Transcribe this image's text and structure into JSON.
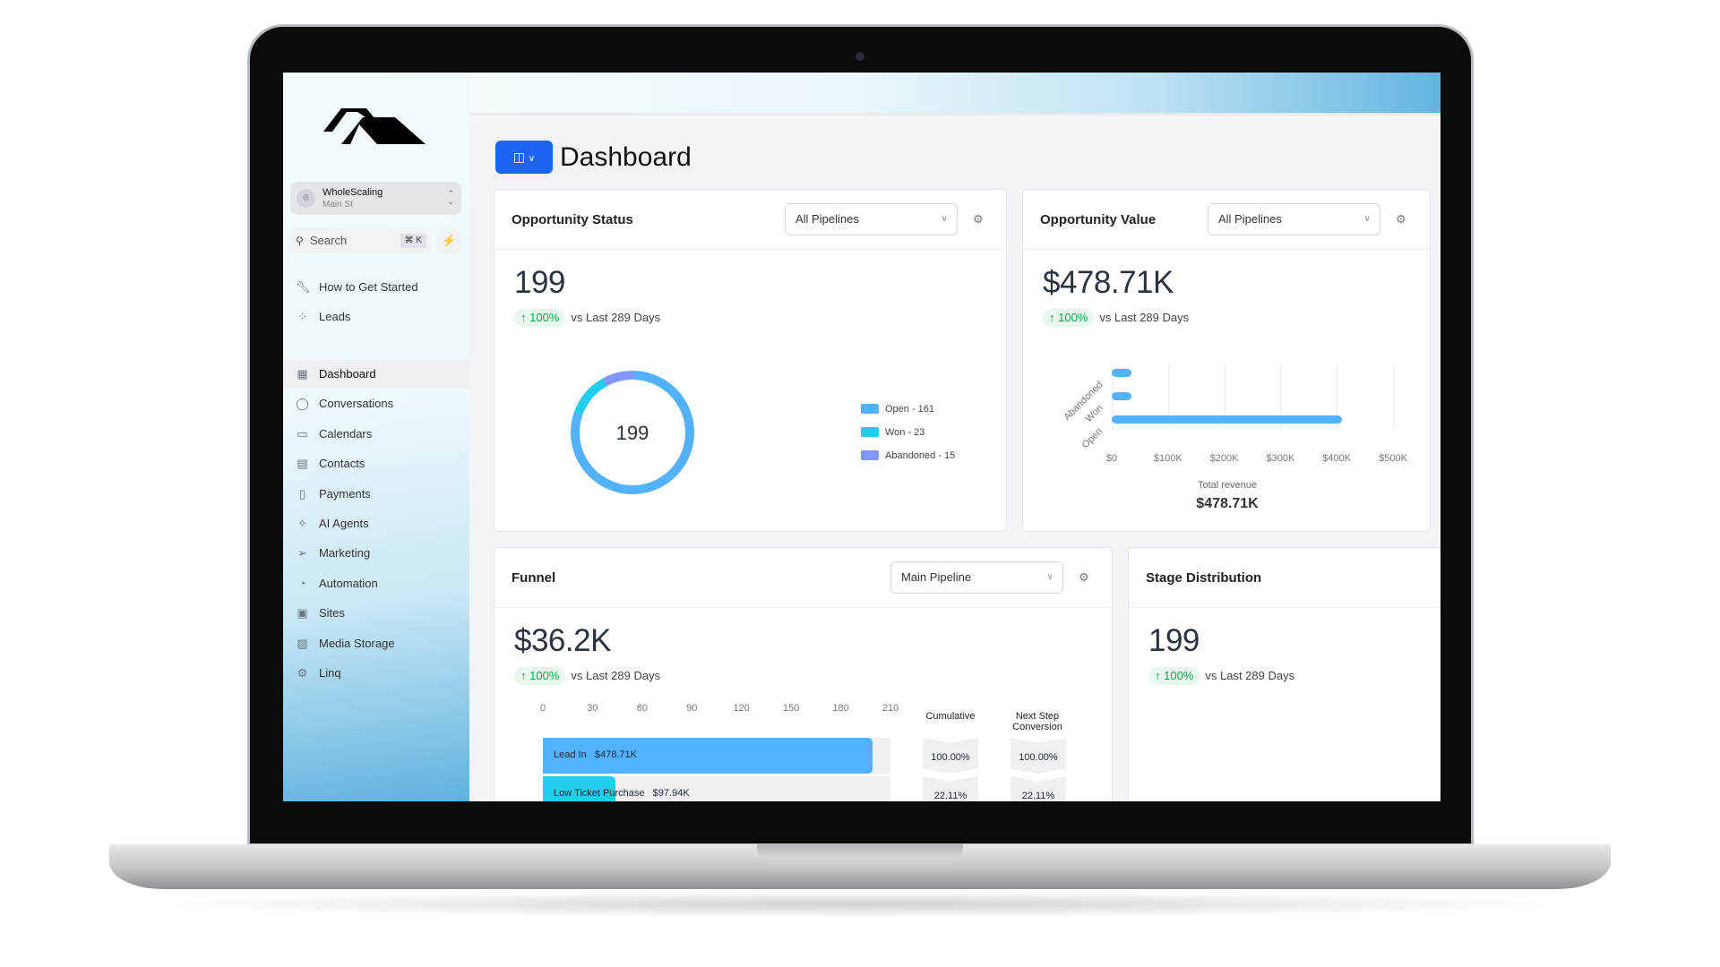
{
  "sidebar": {
    "account": {
      "name": "WholeScaling",
      "location": "Main St"
    },
    "search": {
      "placeholder": "Search",
      "shortcut": "⌘ K"
    },
    "top_items": [
      {
        "label": "How to Get Started",
        "icon": "wrench-icon"
      },
      {
        "label": "Leads",
        "icon": "leads-icon"
      }
    ],
    "items": [
      {
        "label": "Dashboard",
        "icon": "dashboard-icon",
        "active": true
      },
      {
        "label": "Conversations",
        "icon": "chat-icon"
      },
      {
        "label": "Calendars",
        "icon": "calendar-icon"
      },
      {
        "label": "Contacts",
        "icon": "contacts-icon"
      },
      {
        "label": "Payments",
        "icon": "payments-icon"
      },
      {
        "label": "AI Agents",
        "icon": "sparkle-icon"
      },
      {
        "label": "Marketing",
        "icon": "send-icon"
      },
      {
        "label": "Automation",
        "icon": "automation-icon"
      },
      {
        "label": "Sites",
        "icon": "sites-icon"
      },
      {
        "label": "Media Storage",
        "icon": "image-icon"
      },
      {
        "label": "Linq",
        "icon": "gears-icon"
      }
    ]
  },
  "header": {
    "title": "Dashboard"
  },
  "cards": {
    "status": {
      "title": "Opportunity Status",
      "select": "All Pipelines",
      "value": "199",
      "delta": "↑ 100%",
      "compare": "vs Last 289 Days"
    },
    "value": {
      "title": "Opportunity Value",
      "select": "All Pipelines",
      "value": "$478.71K",
      "delta": "↑ 100%",
      "compare": "vs Last 289 Days",
      "total_label": "Total revenue",
      "total_value": "$478.71K"
    },
    "funnel": {
      "title": "Funnel",
      "select": "Main Pipeline",
      "value": "$36.2K",
      "delta": "↑ 100%",
      "compare": "vs Last 289 Days",
      "cumulative_label": "Cumulative",
      "next_label": "Next Step Conversion"
    },
    "stage": {
      "title": "Stage Distribution",
      "value": "199",
      "delta": "↑ 100%",
      "compare": "vs Last 289 Days"
    }
  },
  "colors": {
    "accent": "#1d64f2",
    "open": "#53b1fd",
    "won": "#22cceb",
    "abandoned": "#8098f9",
    "positive": "#16a34a"
  },
  "chart_data": [
    {
      "type": "pie",
      "variant": "donut",
      "center_label": "199",
      "slices": [
        {
          "label": "Open - 161",
          "name": "Open",
          "value": 161,
          "color": "#53b1fd"
        },
        {
          "label": "Won - 23",
          "name": "Won",
          "value": 23,
          "color": "#22cceb"
        },
        {
          "label": "Abandoned - 15",
          "name": "Abandoned",
          "value": 15,
          "color": "#8098f9"
        }
      ],
      "legend": "right"
    },
    {
      "type": "bar",
      "orientation": "horizontal",
      "categories": [
        "Abandoned",
        "Won",
        "Open"
      ],
      "values": [
        35000,
        35000,
        408710
      ],
      "xlim": [
        0,
        500000
      ],
      "xticks": [
        "$0",
        "$100K",
        "$200K",
        "$300K",
        "$400K",
        "$500K"
      ],
      "grid": true,
      "color": "#53b1fd"
    },
    {
      "type": "bar",
      "variant": "funnel",
      "xlim": [
        0,
        210
      ],
      "xticks": [
        "0",
        "30",
        "60",
        "90",
        "120",
        "150",
        "180",
        "210"
      ],
      "stages": [
        {
          "name": "Lead In",
          "amount": "$478.71K",
          "count": 199,
          "color": "#53b1fd",
          "cumulative": "100.00%",
          "next": "100.00%"
        },
        {
          "name": "Low Ticket Purchase",
          "amount": "$97.94K",
          "count": 44,
          "color": "#22cceb",
          "cumulative": "22.11%",
          "next": "22.11%"
        }
      ]
    }
  ]
}
